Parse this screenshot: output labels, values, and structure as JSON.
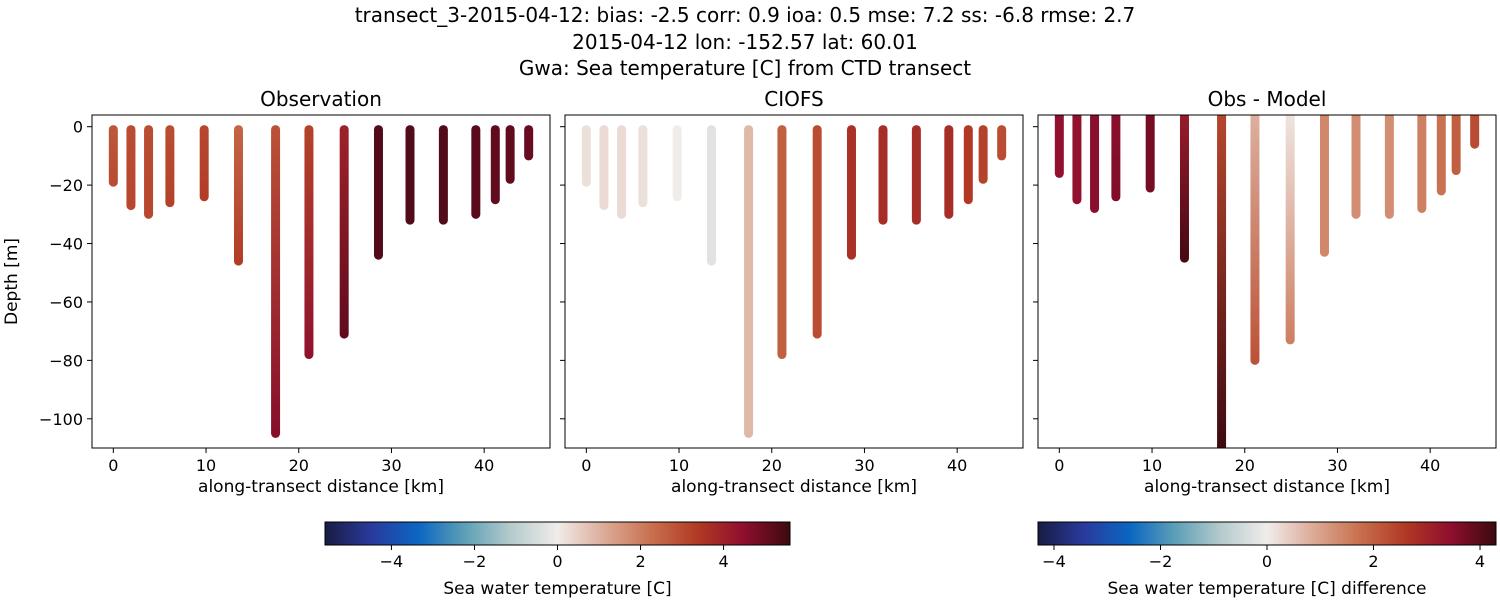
{
  "title_lines": [
    "transect_3-2015-04-12: bias: -2.5  corr: 0.9  ioa: 0.5  mse: 7.2  ss: -6.8  rmse: 2.7",
    "2015-04-12 lon: -152.57 lat: 60.01",
    "Gwa: Sea temperature [C] from CTD transect"
  ],
  "colormap": {
    "name": "balance",
    "stops": [
      "#181c43",
      "#2a3a9c",
      "#0b66c2",
      "#5d9fb6",
      "#b5cbcc",
      "#f0ecea",
      "#dcab98",
      "#c9714f",
      "#b13a24",
      "#8f0f2e",
      "#3c0911"
    ]
  },
  "chart_data": [
    {
      "type": "scatter",
      "title": "Observation",
      "xlabel": "along-transect distance [km]",
      "ylabel": "Depth [m]",
      "xlim": [
        -2.3,
        47.1
      ],
      "ylim": [
        -110,
        4
      ],
      "xticks": [
        0,
        10,
        20,
        30,
        40
      ],
      "yticks": [
        0,
        -20,
        -40,
        -60,
        -80,
        -100
      ],
      "color_range": [
        -5.6,
        5.6
      ],
      "stations": [
        {
          "x": 0,
          "depth": [
            -1,
            -19
          ],
          "values": [
            2.8,
            3.0
          ]
        },
        {
          "x": 1.9,
          "depth": [
            -1,
            -27
          ],
          "values": [
            3.0,
            3.1
          ]
        },
        {
          "x": 3.8,
          "depth": [
            -1,
            -30
          ],
          "values": [
            3.0,
            3.1
          ]
        },
        {
          "x": 6.1,
          "depth": [
            -1,
            -26
          ],
          "values": [
            3.0,
            3.2
          ]
        },
        {
          "x": 9.8,
          "depth": [
            -1,
            -24
          ],
          "values": [
            3.1,
            3.3
          ]
        },
        {
          "x": 13.5,
          "depth": [
            -1,
            -46
          ],
          "values": [
            2.5,
            3.3
          ]
        },
        {
          "x": 17.5,
          "depth": [
            -1,
            -105
          ],
          "values": [
            2.9,
            4.6
          ]
        },
        {
          "x": 21.1,
          "depth": [
            -1,
            -78
          ],
          "values": [
            3.2,
            4.4
          ]
        },
        {
          "x": 24.9,
          "depth": [
            -1,
            -71
          ],
          "values": [
            4.0,
            5.1
          ]
        },
        {
          "x": 28.6,
          "depth": [
            -1,
            -44
          ],
          "values": [
            5.3,
            5.3
          ]
        },
        {
          "x": 32.0,
          "depth": [
            -1,
            -32
          ],
          "values": [
            5.3,
            5.3
          ]
        },
        {
          "x": 35.6,
          "depth": [
            -1,
            -32
          ],
          "values": [
            5.3,
            5.3
          ]
        },
        {
          "x": 39.1,
          "depth": [
            -1,
            -30
          ],
          "values": [
            5.2,
            5.2
          ]
        },
        {
          "x": 41.2,
          "depth": [
            -1,
            -25
          ],
          "values": [
            5.1,
            5.1
          ]
        },
        {
          "x": 42.8,
          "depth": [
            -1,
            -18
          ],
          "values": [
            5.1,
            5.1
          ]
        },
        {
          "x": 44.8,
          "depth": [
            -1,
            -10
          ],
          "values": [
            5.0,
            5.0
          ]
        }
      ]
    },
    {
      "type": "scatter",
      "title": "CIOFS",
      "xlabel": "along-transect distance [km]",
      "ylabel": "",
      "xlim": [
        -2.3,
        47.1
      ],
      "ylim": [
        -110,
        4
      ],
      "xticks": [
        0,
        10,
        20,
        30,
        40
      ],
      "yticks": [
        0,
        -20,
        -40,
        -60,
        -80,
        -100
      ],
      "color_range": [
        -5.6,
        5.6
      ],
      "stations": [
        {
          "x": 0,
          "depth": [
            -1,
            -19
          ],
          "values": [
            0.2,
            0.2
          ]
        },
        {
          "x": 1.9,
          "depth": [
            -1,
            -27
          ],
          "values": [
            0.3,
            0.3
          ]
        },
        {
          "x": 3.8,
          "depth": [
            -1,
            -30
          ],
          "values": [
            0.3,
            0.3
          ]
        },
        {
          "x": 6.1,
          "depth": [
            -1,
            -26
          ],
          "values": [
            0.2,
            0.2
          ]
        },
        {
          "x": 9.8,
          "depth": [
            -1,
            -24
          ],
          "values": [
            0.0,
            0.0
          ]
        },
        {
          "x": 13.5,
          "depth": [
            -1,
            -46
          ],
          "values": [
            -0.3,
            -0.3
          ]
        },
        {
          "x": 17.5,
          "depth": [
            -1,
            -105
          ],
          "values": [
            0.9,
            0.9
          ]
        },
        {
          "x": 21.1,
          "depth": [
            -1,
            -78
          ],
          "values": [
            2.6,
            2.6
          ]
        },
        {
          "x": 24.9,
          "depth": [
            -1,
            -71
          ],
          "values": [
            3.0,
            3.0
          ]
        },
        {
          "x": 28.6,
          "depth": [
            -1,
            -44
          ],
          "values": [
            3.6,
            3.6
          ]
        },
        {
          "x": 32.0,
          "depth": [
            -1,
            -32
          ],
          "values": [
            3.7,
            3.7
          ]
        },
        {
          "x": 35.6,
          "depth": [
            -1,
            -32
          ],
          "values": [
            3.7,
            3.7
          ]
        },
        {
          "x": 39.1,
          "depth": [
            -1,
            -30
          ],
          "values": [
            3.7,
            3.7
          ]
        },
        {
          "x": 41.2,
          "depth": [
            -1,
            -25
          ],
          "values": [
            3.4,
            3.4
          ]
        },
        {
          "x": 42.8,
          "depth": [
            -1,
            -18
          ],
          "values": [
            3.2,
            3.2
          ]
        },
        {
          "x": 44.8,
          "depth": [
            -1,
            -10
          ],
          "values": [
            3.0,
            3.0
          ]
        }
      ]
    },
    {
      "type": "scatter",
      "title": "Obs - Model",
      "xlabel": "along-transect distance [km]",
      "ylabel": "",
      "xlim": [
        -2.3,
        47.1
      ],
      "ylim": [
        -110,
        4
      ],
      "xticks": [
        0,
        10,
        20,
        30,
        40
      ],
      "yticks": [
        0,
        -20,
        -40,
        -60,
        -80,
        -100
      ],
      "color_range": [
        -4.3,
        4.3
      ],
      "stations": [
        {
          "x": 0,
          "depth": [
            4,
            -16
          ],
          "values": [
            3.4,
            3.4
          ]
        },
        {
          "x": 1.9,
          "depth": [
            4,
            -25
          ],
          "values": [
            3.4,
            3.4
          ]
        },
        {
          "x": 3.8,
          "depth": [
            4,
            -28
          ],
          "values": [
            3.5,
            3.5
          ]
        },
        {
          "x": 6.1,
          "depth": [
            4,
            -24
          ],
          "values": [
            3.5,
            3.6
          ]
        },
        {
          "x": 9.8,
          "depth": [
            4,
            -21
          ],
          "values": [
            3.7,
            3.7
          ]
        },
        {
          "x": 13.5,
          "depth": [
            4,
            -45
          ],
          "values": [
            3.2,
            4.2
          ]
        },
        {
          "x": 17.5,
          "depth": [
            4,
            -112
          ],
          "values": [
            2.4,
            4.3
          ]
        },
        {
          "x": 21.1,
          "depth": [
            4,
            -80
          ],
          "values": [
            0.8,
            2.2
          ]
        },
        {
          "x": 24.9,
          "depth": [
            4,
            -73
          ],
          "values": [
            0.1,
            1.5
          ]
        },
        {
          "x": 28.6,
          "depth": [
            4,
            -43
          ],
          "values": [
            1.4,
            1.4
          ]
        },
        {
          "x": 32.0,
          "depth": [
            4,
            -30
          ],
          "values": [
            1.3,
            1.3
          ]
        },
        {
          "x": 35.6,
          "depth": [
            4,
            -30
          ],
          "values": [
            1.3,
            1.3
          ]
        },
        {
          "x": 39.1,
          "depth": [
            4,
            -28
          ],
          "values": [
            1.5,
            1.5
          ]
        },
        {
          "x": 41.2,
          "depth": [
            4,
            -22
          ],
          "values": [
            1.7,
            1.7
          ]
        },
        {
          "x": 42.8,
          "depth": [
            4,
            -15
          ],
          "values": [
            2.0,
            2.0
          ]
        },
        {
          "x": 44.8,
          "depth": [
            4,
            -6
          ],
          "values": [
            2.3,
            2.3
          ]
        }
      ]
    }
  ],
  "colorbars": [
    {
      "label": "Sea water temperature [C]",
      "range": [
        -5.6,
        5.6
      ],
      "ticks": [
        -4,
        -2,
        0,
        2,
        4
      ],
      "tick_labels": [
        "−4",
        "−2",
        "0",
        "2",
        "4"
      ]
    },
    {
      "label": "Sea water temperature [C] difference",
      "range": [
        -4.3,
        4.3
      ],
      "ticks": [
        -4,
        -2,
        0,
        2,
        4
      ],
      "tick_labels": [
        "−4",
        "−2",
        "0",
        "2",
        "4"
      ]
    }
  ]
}
